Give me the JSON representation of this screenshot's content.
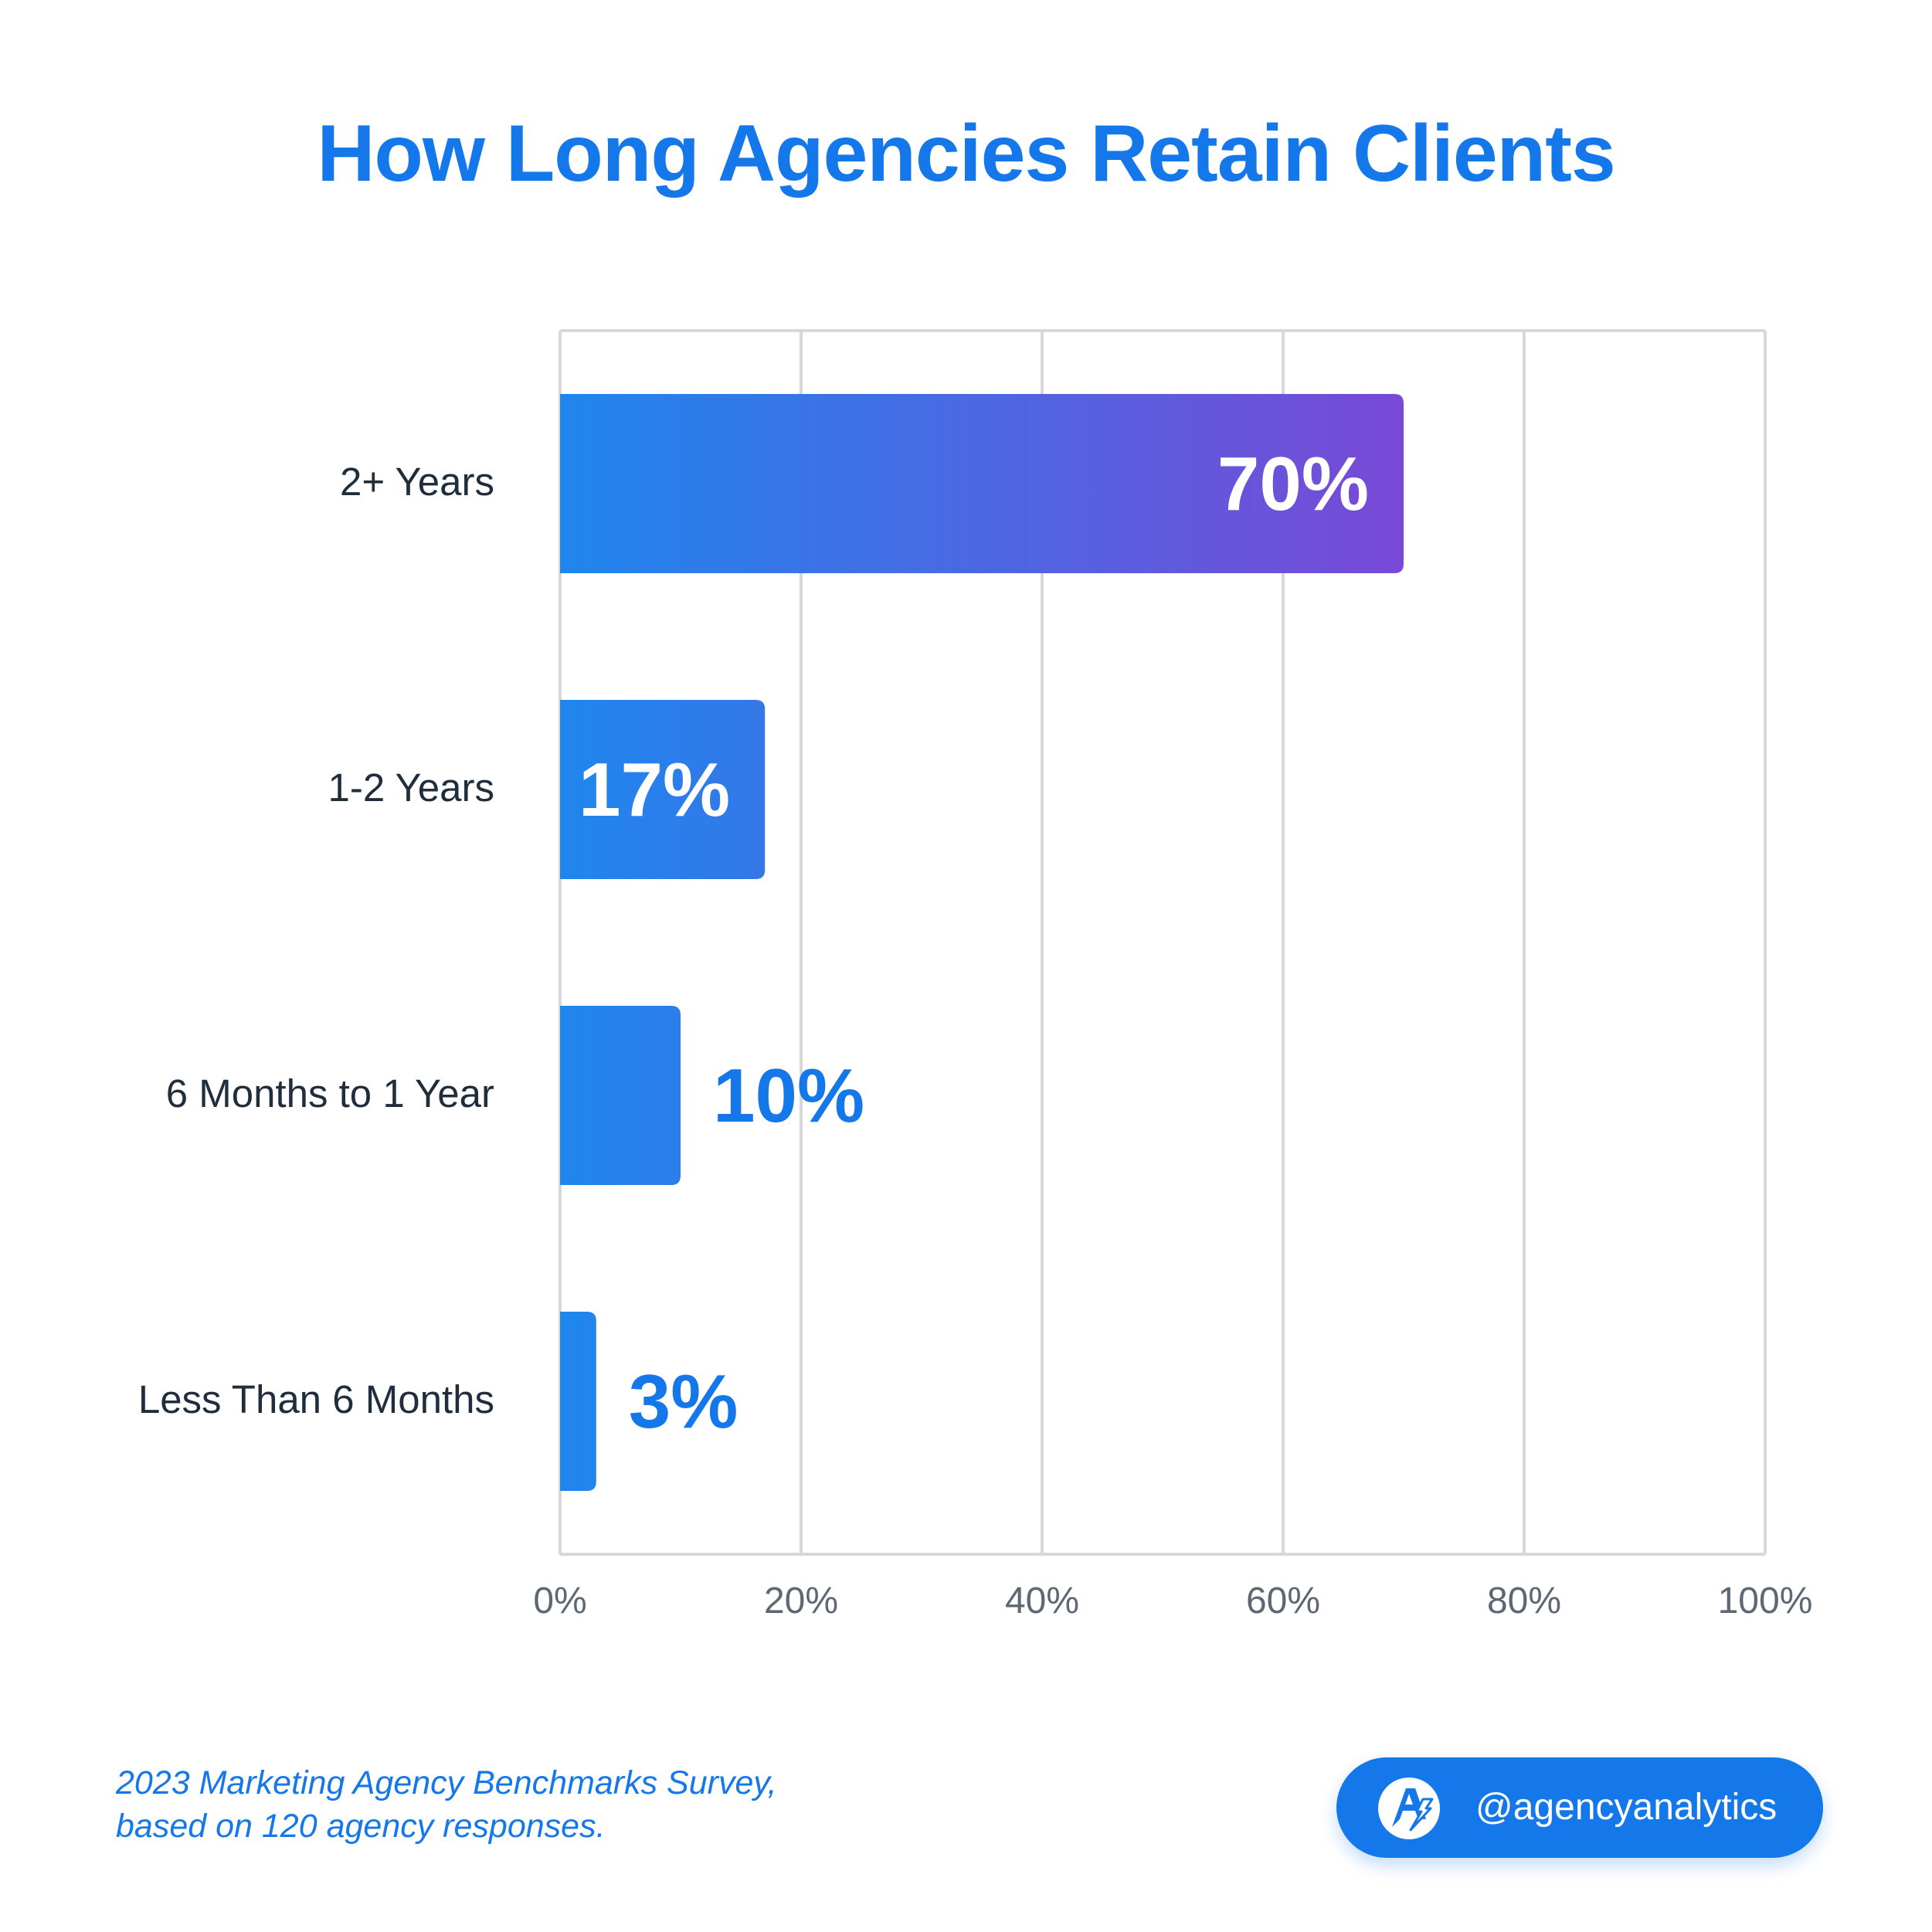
{
  "title": "How Long Agencies Retain Clients",
  "chart_data": {
    "type": "bar",
    "orientation": "horizontal",
    "title": "How Long Agencies Retain Clients",
    "categories": [
      "2+ Years",
      "1-2 Years",
      "6 Months to 1 Year",
      "Less Than 6 Months"
    ],
    "values": [
      70,
      17,
      10,
      3
    ],
    "value_labels": [
      "70%",
      "17%",
      "10%",
      "3%"
    ],
    "xlim": [
      0,
      100
    ],
    "x_ticks": [
      "0%",
      "20%",
      "40%",
      "60%",
      "80%",
      "100%"
    ],
    "grid": true,
    "colors": {
      "bar_gradient_start": "#1f86ee",
      "bar_gradient_end": "#7a48d6",
      "accent": "#1477ea",
      "grid": "#d6d8db",
      "label_text": "#1f2d3d",
      "tick_text": "#5d6874"
    }
  },
  "footnote": {
    "line1": "2023 Marketing Agency Benchmarks Survey,",
    "line2": "based on 120 agency responses."
  },
  "handle": {
    "text": "@agencyanalytics",
    "icon": "agencyanalytics-logo-icon"
  }
}
